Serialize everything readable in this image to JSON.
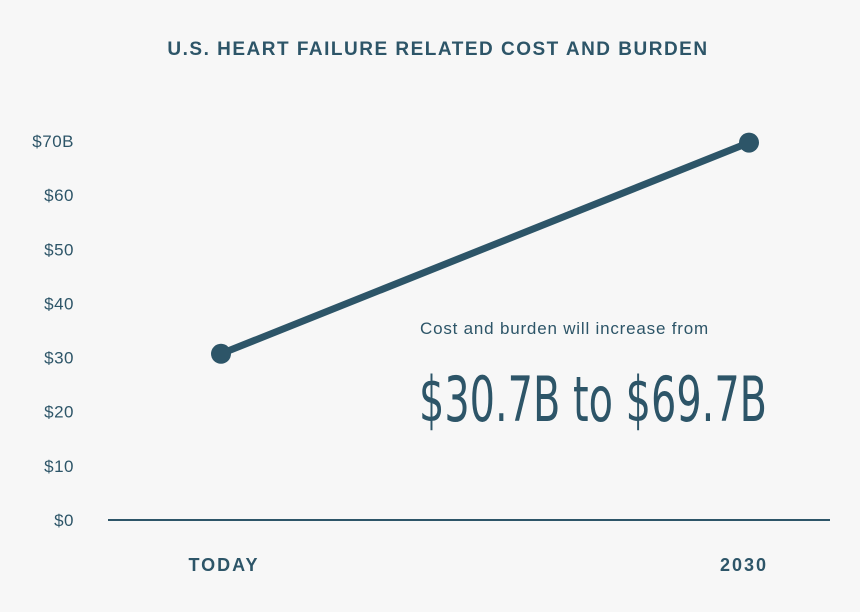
{
  "chart_data": {
    "type": "line",
    "title": "U.S. HEART FAILURE RELATED COST AND BURDEN",
    "categories": [
      "TODAY",
      "2030"
    ],
    "series": [
      {
        "values": [
          30.7,
          69.7
        ]
      }
    ],
    "y_ticks": [
      {
        "value": 0,
        "label": "$0"
      },
      {
        "value": 10,
        "label": "$10"
      },
      {
        "value": 20,
        "label": "$20"
      },
      {
        "value": 30,
        "label": "$30"
      },
      {
        "value": 40,
        "label": "$40"
      },
      {
        "value": 50,
        "label": "$50"
      },
      {
        "value": 60,
        "label": "$60"
      },
      {
        "value": 70,
        "label": "$70B"
      }
    ],
    "ylim": [
      0,
      70
    ],
    "grid": false,
    "legend": "none",
    "annotation": {
      "caption": "Cost and burden will increase from",
      "highlight": "$30.7B to $69.7B"
    },
    "colors": {
      "line": "#2d5568",
      "text": "#2d5568",
      "axis": "#2d5568",
      "background": "#f7f7f7"
    }
  }
}
